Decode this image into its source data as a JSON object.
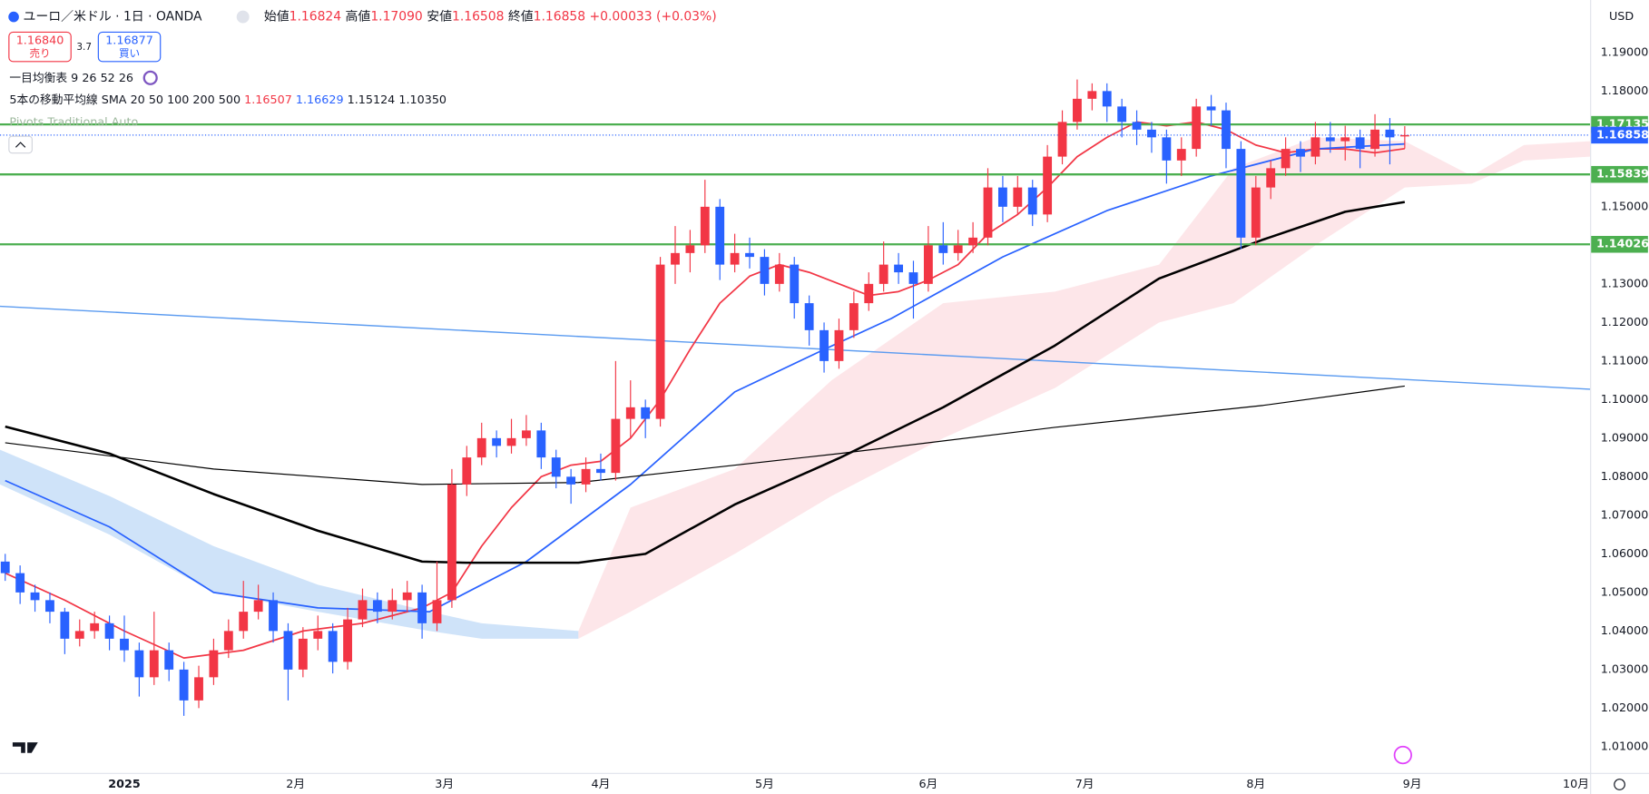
{
  "header": {
    "symbol": "ユーロ／米ドル · 1日 · OANDA",
    "ohlc": [
      {
        "label": "始値",
        "value": "1.16824"
      },
      {
        "label": "高値",
        "value": "1.17090"
      },
      {
        "label": "安値",
        "value": "1.16508"
      },
      {
        "label": "終値",
        "value": "1.16858"
      }
    ],
    "change": "+0.00033 (+0.03%)",
    "sell": {
      "price": "1.16840",
      "label": "売り"
    },
    "spread": "3.7",
    "buy": {
      "price": "1.16877",
      "label": "買い"
    },
    "indicators": [
      {
        "name": "一目均衡表",
        "params": "9 26 52 26"
      },
      {
        "name": "5本の移動平均線",
        "params": "SMA 20 50 100 200 500",
        "values": [
          "1.16507",
          "1.16629",
          "1.15124",
          "1.10350"
        ]
      },
      {
        "name": "Pivots Traditional Auto"
      }
    ],
    "currency": "USD"
  },
  "chart_data": {
    "type": "candlestick",
    "up_color": "#f23645",
    "down_color": "#2962ff",
    "xlim": [
      -16.7,
      196.9
    ],
    "xticks": [
      {
        "value": 0,
        "label": "2025"
      },
      {
        "value": 23,
        "label": "2月"
      },
      {
        "value": 43,
        "label": "3月"
      },
      {
        "value": 64,
        "label": "4月"
      },
      {
        "value": 86,
        "label": "5月"
      },
      {
        "value": 108,
        "label": "6月"
      },
      {
        "value": 129,
        "label": "7月"
      },
      {
        "value": 152,
        "label": "8月"
      },
      {
        "value": 173,
        "label": "9月"
      },
      {
        "value": 195,
        "label": "10月"
      }
    ],
    "ylim": [
      1.0032,
      1.2036
    ],
    "yticks": [
      {
        "value": 1.01,
        "label": "1.01000"
      },
      {
        "value": 1.02,
        "label": "1.02000"
      },
      {
        "value": 1.03,
        "label": "1.03000"
      },
      {
        "value": 1.04,
        "label": "1.04000"
      },
      {
        "value": 1.05,
        "label": "1.05000"
      },
      {
        "value": 1.06,
        "label": "1.06000"
      },
      {
        "value": 1.07,
        "label": "1.07000"
      },
      {
        "value": 1.08,
        "label": "1.08000"
      },
      {
        "value": 1.09,
        "label": "1.09000"
      },
      {
        "value": 1.1,
        "label": "1.10000"
      },
      {
        "value": 1.11,
        "label": "1.11000"
      },
      {
        "value": 1.12,
        "label": "1.12000"
      },
      {
        "value": 1.13,
        "label": "1.13000"
      },
      {
        "value": 1.14,
        "label": "1.14000"
      },
      {
        "value": 1.15,
        "label": "1.15000"
      },
      {
        "value": 1.16,
        "label": "1.16000"
      },
      {
        "value": 1.17,
        "label": "1.17000"
      },
      {
        "value": 1.18,
        "label": "1.18000"
      },
      {
        "value": 1.19,
        "label": "1.19000"
      }
    ],
    "x": [
      -16,
      -14,
      -12,
      -10,
      -8,
      -6,
      -4,
      -2,
      0,
      2,
      4,
      6,
      8,
      10,
      12,
      14,
      16,
      18,
      20,
      22,
      24,
      26,
      28,
      30,
      32,
      34,
      36,
      38,
      40,
      42,
      44,
      46,
      48,
      50,
      52,
      54,
      56,
      58,
      60,
      62,
      64,
      66,
      68,
      70,
      72,
      74,
      76,
      78,
      80,
      82,
      84,
      86,
      88,
      90,
      92,
      94,
      96,
      98,
      100,
      102,
      104,
      106,
      108,
      110,
      112,
      114,
      116,
      118,
      120,
      122,
      124,
      126,
      128,
      130,
      132,
      134,
      136,
      138,
      140,
      142,
      144,
      146,
      148,
      150,
      152,
      154,
      156,
      158,
      160,
      162,
      164,
      166,
      168,
      170,
      172
    ],
    "candles": [
      [
        1.058,
        1.06,
        1.053,
        1.055
      ],
      [
        1.055,
        1.057,
        1.047,
        1.05
      ],
      [
        1.05,
        1.052,
        1.045,
        1.048
      ],
      [
        1.048,
        1.05,
        1.042,
        1.045
      ],
      [
        1.045,
        1.046,
        1.034,
        1.038
      ],
      [
        1.038,
        1.043,
        1.036,
        1.04
      ],
      [
        1.04,
        1.045,
        1.038,
        1.042
      ],
      [
        1.042,
        1.044,
        1.035,
        1.038
      ],
      [
        1.038,
        1.044,
        1.032,
        1.035
      ],
      [
        1.035,
        1.037,
        1.023,
        1.028
      ],
      [
        1.028,
        1.045,
        1.026,
        1.035
      ],
      [
        1.035,
        1.037,
        1.027,
        1.03
      ],
      [
        1.03,
        1.032,
        1.018,
        1.022
      ],
      [
        1.022,
        1.031,
        1.02,
        1.028
      ],
      [
        1.028,
        1.038,
        1.026,
        1.035
      ],
      [
        1.035,
        1.043,
        1.033,
        1.04
      ],
      [
        1.04,
        1.053,
        1.038,
        1.045
      ],
      [
        1.045,
        1.052,
        1.043,
        1.048
      ],
      [
        1.048,
        1.05,
        1.037,
        1.04
      ],
      [
        1.04,
        1.042,
        1.022,
        1.03
      ],
      [
        1.03,
        1.041,
        1.028,
        1.038
      ],
      [
        1.038,
        1.044,
        1.035,
        1.04
      ],
      [
        1.04,
        1.042,
        1.029,
        1.032
      ],
      [
        1.032,
        1.046,
        1.03,
        1.043
      ],
      [
        1.043,
        1.051,
        1.041,
        1.048
      ],
      [
        1.048,
        1.05,
        1.042,
        1.045
      ],
      [
        1.045,
        1.051,
        1.043,
        1.048
      ],
      [
        1.048,
        1.053,
        1.045,
        1.05
      ],
      [
        1.05,
        1.052,
        1.038,
        1.042
      ],
      [
        1.042,
        1.058,
        1.04,
        1.048
      ],
      [
        1.048,
        1.082,
        1.046,
        1.078
      ],
      [
        1.078,
        1.088,
        1.075,
        1.085
      ],
      [
        1.085,
        1.094,
        1.083,
        1.09
      ],
      [
        1.09,
        1.092,
        1.085,
        1.088
      ],
      [
        1.088,
        1.095,
        1.086,
        1.09
      ],
      [
        1.09,
        1.096,
        1.088,
        1.092
      ],
      [
        1.092,
        1.094,
        1.082,
        1.085
      ],
      [
        1.085,
        1.087,
        1.077,
        1.08
      ],
      [
        1.08,
        1.082,
        1.073,
        1.078
      ],
      [
        1.078,
        1.085,
        1.076,
        1.082
      ],
      [
        1.082,
        1.086,
        1.079,
        1.081
      ],
      [
        1.081,
        1.11,
        1.079,
        1.095
      ],
      [
        1.095,
        1.105,
        1.09,
        1.098
      ],
      [
        1.098,
        1.1,
        1.09,
        1.095
      ],
      [
        1.095,
        1.137,
        1.093,
        1.135
      ],
      [
        1.135,
        1.145,
        1.13,
        1.138
      ],
      [
        1.138,
        1.144,
        1.133,
        1.14
      ],
      [
        1.14,
        1.157,
        1.138,
        1.15
      ],
      [
        1.15,
        1.152,
        1.131,
        1.135
      ],
      [
        1.135,
        1.143,
        1.133,
        1.138
      ],
      [
        1.138,
        1.142,
        1.134,
        1.137
      ],
      [
        1.137,
        1.139,
        1.127,
        1.13
      ],
      [
        1.13,
        1.138,
        1.128,
        1.135
      ],
      [
        1.135,
        1.137,
        1.121,
        1.125
      ],
      [
        1.125,
        1.127,
        1.114,
        1.118
      ],
      [
        1.118,
        1.12,
        1.107,
        1.11
      ],
      [
        1.11,
        1.121,
        1.108,
        1.118
      ],
      [
        1.118,
        1.128,
        1.116,
        1.125
      ],
      [
        1.125,
        1.133,
        1.123,
        1.13
      ],
      [
        1.13,
        1.141,
        1.128,
        1.135
      ],
      [
        1.135,
        1.138,
        1.13,
        1.133
      ],
      [
        1.133,
        1.136,
        1.121,
        1.13
      ],
      [
        1.13,
        1.145,
        1.128,
        1.14
      ],
      [
        1.14,
        1.146,
        1.135,
        1.138
      ],
      [
        1.138,
        1.144,
        1.136,
        1.14
      ],
      [
        1.14,
        1.146,
        1.138,
        1.142
      ],
      [
        1.142,
        1.16,
        1.14,
        1.155
      ],
      [
        1.155,
        1.158,
        1.146,
        1.15
      ],
      [
        1.15,
        1.158,
        1.148,
        1.155
      ],
      [
        1.155,
        1.157,
        1.145,
        1.148
      ],
      [
        1.148,
        1.166,
        1.146,
        1.163
      ],
      [
        1.163,
        1.175,
        1.161,
        1.172
      ],
      [
        1.172,
        1.183,
        1.17,
        1.178
      ],
      [
        1.178,
        1.182,
        1.175,
        1.18
      ],
      [
        1.18,
        1.182,
        1.172,
        1.176
      ],
      [
        1.176,
        1.178,
        1.168,
        1.172
      ],
      [
        1.172,
        1.175,
        1.166,
        1.17
      ],
      [
        1.17,
        1.172,
        1.164,
        1.168
      ],
      [
        1.168,
        1.17,
        1.156,
        1.162
      ],
      [
        1.162,
        1.168,
        1.158,
        1.165
      ],
      [
        1.165,
        1.178,
        1.163,
        1.176
      ],
      [
        1.176,
        1.179,
        1.171,
        1.175
      ],
      [
        1.175,
        1.177,
        1.16,
        1.165
      ],
      [
        1.165,
        1.167,
        1.139,
        1.142
      ],
      [
        1.142,
        1.158,
        1.14,
        1.155
      ],
      [
        1.155,
        1.162,
        1.152,
        1.16
      ],
      [
        1.16,
        1.168,
        1.158,
        1.165
      ],
      [
        1.165,
        1.167,
        1.159,
        1.163
      ],
      [
        1.163,
        1.172,
        1.161,
        1.168
      ],
      [
        1.168,
        1.172,
        1.164,
        1.167
      ],
      [
        1.167,
        1.171,
        1.162,
        1.168
      ],
      [
        1.168,
        1.17,
        1.16,
        1.165
      ],
      [
        1.165,
        1.174,
        1.163,
        1.17
      ],
      [
        1.17,
        1.173,
        1.161,
        1.168
      ],
      [
        1.16824,
        1.1709,
        1.16508,
        1.16858
      ]
    ],
    "clouds": [
      {
        "color": "#bbd7f7",
        "x": [
          -16.7,
          -2,
          12,
          26,
          41,
          48,
          61
        ],
        "upper": [
          1.087,
          1.075,
          1.062,
          1.052,
          1.045,
          1.042,
          1.04
        ],
        "lower": [
          1.078,
          1.065,
          1.05,
          1.045,
          1.04,
          1.038,
          1.038
        ]
      },
      {
        "color": "#fcdcdf",
        "x": [
          61,
          68,
          82,
          95,
          110,
          125,
          139,
          149,
          160,
          172,
          181,
          188,
          196.9
        ],
        "upper": [
          1.04,
          1.072,
          1.082,
          1.105,
          1.125,
          1.128,
          1.135,
          1.16,
          1.168,
          1.167,
          1.158,
          1.166,
          1.167
        ],
        "lower": [
          1.038,
          1.045,
          1.06,
          1.075,
          1.09,
          1.103,
          1.12,
          1.125,
          1.14,
          1.155,
          1.156,
          1.162,
          1.163
        ]
      }
    ],
    "lines": [
      {
        "color": "#f23645",
        "width": 1.5,
        "x": [
          -16,
          -8,
          0,
          8,
          16,
          24,
          32,
          40,
          44,
          48,
          52,
          56,
          60,
          64,
          68,
          72,
          76,
          80,
          84,
          88,
          92,
          96,
          100,
          104,
          108,
          112,
          116,
          120,
          124,
          128,
          132,
          136,
          140,
          144,
          148,
          152,
          156,
          160,
          164,
          168,
          172
        ],
        "values": [
          1.055,
          1.048,
          1.04,
          1.033,
          1.035,
          1.04,
          1.042,
          1.046,
          1.05,
          1.062,
          1.072,
          1.08,
          1.083,
          1.084,
          1.09,
          1.1,
          1.113,
          1.125,
          1.132,
          1.135,
          1.133,
          1.13,
          1.127,
          1.128,
          1.131,
          1.135,
          1.143,
          1.148,
          1.155,
          1.163,
          1.168,
          1.172,
          1.171,
          1.172,
          1.17,
          1.166,
          1.164,
          1.165,
          1.165,
          1.164,
          1.16507
        ]
      },
      {
        "color": "#2962ff",
        "width": 1.5,
        "x": [
          -16,
          -2,
          12,
          26,
          41,
          54,
          68,
          82,
          94,
          103,
          118,
          132,
          146,
          160,
          172
        ],
        "values": [
          1.079,
          1.067,
          1.05,
          1.046,
          1.045,
          1.058,
          1.078,
          1.102,
          1.113,
          1.121,
          1.137,
          1.149,
          1.158,
          1.165,
          1.16629
        ]
      },
      {
        "color": "#000000",
        "width": 2.2,
        "x": [
          -16,
          -2,
          12,
          26,
          40,
          46,
          61,
          70,
          82,
          96,
          110,
          125,
          139,
          153,
          164,
          172
        ],
        "values": [
          1.093,
          1.086,
          1.0755,
          1.066,
          1.058,
          1.0577,
          1.0577,
          1.06,
          1.0728,
          1.0848,
          1.098,
          1.114,
          1.1314,
          1.1415,
          1.1487,
          1.15124
        ]
      },
      {
        "color": "#000000",
        "width": 1,
        "x": [
          -16,
          12,
          40,
          61,
          96,
          125,
          153,
          172
        ],
        "values": [
          1.0888,
          1.082,
          1.078,
          1.0785,
          1.086,
          1.0928,
          1.0985,
          1.1035
        ]
      }
    ],
    "trendline": {
      "color": "#5b9bf0",
      "x": [
        -16.7,
        196.9
      ],
      "values": [
        1.1242,
        1.1027
      ]
    },
    "pivots": [
      {
        "value": 1.17135,
        "color": "#4caf50"
      },
      {
        "value": 1.15839,
        "color": "#4caf50"
      },
      {
        "value": 1.14026,
        "color": "#4caf50"
      }
    ],
    "last_price": {
      "value": 1.16858,
      "color": "#2962ff"
    }
  }
}
